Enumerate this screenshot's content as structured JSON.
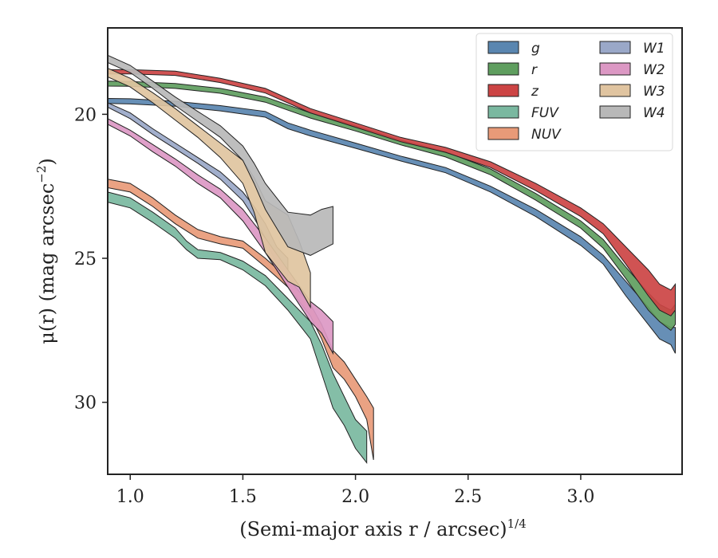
{
  "chart_data": {
    "type": "area",
    "xlabel": "(Semi-major axis r / arcsec)",
    "xlabel_exponent": "1/4",
    "ylabel": "μ(r) (mag arcsec",
    "ylabel_exponent": "−2",
    "ylabel_suffix": ")",
    "xlim": [
      0.9,
      3.45
    ],
    "ylim": [
      32.5,
      17.0
    ],
    "y_inverted": true,
    "x_ticks": [
      1.0,
      1.5,
      2.0,
      2.5,
      3.0
    ],
    "x_tick_labels": [
      "1.0",
      "1.5",
      "2.0",
      "2.5",
      "3.0"
    ],
    "y_ticks": [
      20,
      25,
      30
    ],
    "y_tick_labels": [
      "20",
      "25",
      "30"
    ],
    "legend_position": "top-right",
    "legend_columns": 2,
    "series": [
      {
        "name": "g",
        "color": "#5a86b0",
        "points": [
          [
            0.9,
            19.45,
            19.62
          ],
          [
            1.0,
            19.46,
            19.64
          ],
          [
            1.2,
            19.55,
            19.72
          ],
          [
            1.4,
            19.7,
            19.88
          ],
          [
            1.6,
            19.9,
            20.1
          ],
          [
            1.7,
            20.3,
            20.5
          ],
          [
            1.8,
            20.55,
            20.75
          ],
          [
            2.0,
            21.0,
            21.18
          ],
          [
            2.2,
            21.45,
            21.62
          ],
          [
            2.4,
            21.85,
            22.03
          ],
          [
            2.6,
            22.5,
            22.7
          ],
          [
            2.8,
            23.3,
            23.55
          ],
          [
            3.0,
            24.25,
            24.55
          ],
          [
            3.1,
            24.9,
            25.2
          ],
          [
            3.2,
            25.8,
            26.3
          ],
          [
            3.3,
            26.7,
            27.3
          ],
          [
            3.35,
            27.2,
            27.8
          ],
          [
            3.4,
            27.4,
            28.0
          ],
          [
            3.42,
            27.4,
            28.3
          ]
        ]
      },
      {
        "name": "r",
        "color": "#5f9e5f",
        "points": [
          [
            0.9,
            18.85,
            19.02
          ],
          [
            1.0,
            18.86,
            19.03
          ],
          [
            1.2,
            18.93,
            19.1
          ],
          [
            1.4,
            19.1,
            19.27
          ],
          [
            1.6,
            19.4,
            19.58
          ],
          [
            1.8,
            19.95,
            20.13
          ],
          [
            2.0,
            20.4,
            20.58
          ],
          [
            2.2,
            20.9,
            21.06
          ],
          [
            2.4,
            21.3,
            21.48
          ],
          [
            2.6,
            21.9,
            22.1
          ],
          [
            2.8,
            22.75,
            22.98
          ],
          [
            3.0,
            23.7,
            23.95
          ],
          [
            3.1,
            24.35,
            24.65
          ],
          [
            3.2,
            25.3,
            25.7
          ],
          [
            3.3,
            26.2,
            26.8
          ],
          [
            3.35,
            26.6,
            27.2
          ],
          [
            3.4,
            26.8,
            27.5
          ],
          [
            3.42,
            26.6,
            27.3
          ]
        ]
      },
      {
        "name": "z",
        "color": "#cc4444",
        "points": [
          [
            0.9,
            18.45,
            18.6
          ],
          [
            1.0,
            18.45,
            18.6
          ],
          [
            1.2,
            18.5,
            18.65
          ],
          [
            1.4,
            18.75,
            18.9
          ],
          [
            1.6,
            19.1,
            19.26
          ],
          [
            1.8,
            19.8,
            19.95
          ],
          [
            2.0,
            20.3,
            20.45
          ],
          [
            2.2,
            20.8,
            20.95
          ],
          [
            2.4,
            21.15,
            21.32
          ],
          [
            2.6,
            21.65,
            21.85
          ],
          [
            2.8,
            22.4,
            22.65
          ],
          [
            3.0,
            23.25,
            23.55
          ],
          [
            3.1,
            23.8,
            24.15
          ],
          [
            3.2,
            24.6,
            25.2
          ],
          [
            3.3,
            25.4,
            26.3
          ],
          [
            3.35,
            25.9,
            26.8
          ],
          [
            3.4,
            26.1,
            27.0
          ],
          [
            3.42,
            25.9,
            26.8
          ]
        ]
      },
      {
        "name": "FUV",
        "color": "#7ab8a0",
        "points": [
          [
            0.9,
            22.7,
            23.05
          ],
          [
            1.0,
            22.9,
            23.25
          ],
          [
            1.1,
            23.4,
            23.75
          ],
          [
            1.2,
            23.95,
            24.3
          ],
          [
            1.25,
            24.4,
            24.7
          ],
          [
            1.3,
            24.7,
            25.0
          ],
          [
            1.4,
            24.8,
            25.05
          ],
          [
            1.5,
            25.1,
            25.4
          ],
          [
            1.6,
            25.6,
            25.95
          ],
          [
            1.7,
            26.4,
            26.8
          ],
          [
            1.8,
            27.2,
            27.8
          ],
          [
            1.85,
            28.0,
            29.0
          ],
          [
            1.9,
            29.0,
            30.2
          ],
          [
            1.95,
            29.8,
            30.8
          ],
          [
            2.0,
            30.6,
            31.6
          ],
          [
            2.05,
            31.0,
            32.1
          ]
        ]
      },
      {
        "name": "NUV",
        "color": "#e89a78",
        "points": [
          [
            0.9,
            22.25,
            22.55
          ],
          [
            1.0,
            22.4,
            22.7
          ],
          [
            1.1,
            22.9,
            23.2
          ],
          [
            1.2,
            23.5,
            23.8
          ],
          [
            1.3,
            24.0,
            24.3
          ],
          [
            1.4,
            24.25,
            24.5
          ],
          [
            1.5,
            24.4,
            24.65
          ],
          [
            1.6,
            25.0,
            25.3
          ],
          [
            1.7,
            25.7,
            26.0
          ],
          [
            1.8,
            26.6,
            27.0
          ],
          [
            1.85,
            27.3,
            27.8
          ],
          [
            1.9,
            28.2,
            28.8
          ],
          [
            1.95,
            28.6,
            29.2
          ],
          [
            2.0,
            29.2,
            29.8
          ],
          [
            2.05,
            29.8,
            30.6
          ],
          [
            2.08,
            30.2,
            32.0
          ]
        ]
      },
      {
        "name": "W1",
        "color": "#9aa8c8",
        "points": [
          [
            0.9,
            19.6,
            19.75
          ],
          [
            1.0,
            19.95,
            20.15
          ],
          [
            1.1,
            20.5,
            20.7
          ],
          [
            1.2,
            21.0,
            21.2
          ],
          [
            1.3,
            21.5,
            21.7
          ],
          [
            1.4,
            22.0,
            22.25
          ],
          [
            1.5,
            22.7,
            23.0
          ],
          [
            1.55,
            23.2,
            23.6
          ],
          [
            1.6,
            23.8,
            24.3
          ],
          [
            1.65,
            24.6,
            25.2
          ],
          [
            1.7,
            25.0,
            25.6
          ]
        ]
      },
      {
        "name": "W2",
        "color": "#dc98c4",
        "points": [
          [
            0.9,
            20.15,
            20.35
          ],
          [
            1.0,
            20.55,
            20.75
          ],
          [
            1.1,
            21.05,
            21.3
          ],
          [
            1.2,
            21.55,
            21.8
          ],
          [
            1.3,
            22.1,
            22.4
          ],
          [
            1.4,
            22.6,
            22.9
          ],
          [
            1.5,
            23.3,
            23.7
          ],
          [
            1.6,
            24.3,
            24.8
          ],
          [
            1.7,
            25.4,
            26.0
          ],
          [
            1.8,
            26.5,
            27.2
          ],
          [
            1.85,
            26.8,
            27.6
          ],
          [
            1.9,
            27.2,
            28.3
          ]
        ]
      },
      {
        "name": "W3",
        "color": "#e0c4a0",
        "points": [
          [
            0.9,
            18.4,
            18.7
          ],
          [
            1.0,
            18.75,
            19.05
          ],
          [
            1.1,
            19.25,
            19.6
          ],
          [
            1.2,
            19.8,
            20.2
          ],
          [
            1.3,
            20.4,
            20.8
          ],
          [
            1.4,
            21.0,
            21.5
          ],
          [
            1.5,
            21.6,
            22.4
          ],
          [
            1.55,
            22.2,
            23.4
          ],
          [
            1.6,
            23.0,
            24.8
          ],
          [
            1.7,
            23.5,
            25.8
          ],
          [
            1.75,
            24.4,
            26.0
          ],
          [
            1.8,
            25.5,
            26.7
          ]
        ]
      },
      {
        "name": "W4",
        "color": "#b8b8b8",
        "points": [
          [
            0.9,
            17.95,
            18.2
          ],
          [
            1.0,
            18.3,
            18.55
          ],
          [
            1.1,
            18.85,
            19.1
          ],
          [
            1.2,
            19.4,
            19.7
          ],
          [
            1.3,
            19.9,
            20.25
          ],
          [
            1.4,
            20.4,
            20.8
          ],
          [
            1.5,
            21.1,
            21.6
          ],
          [
            1.55,
            21.7,
            22.4
          ],
          [
            1.6,
            22.4,
            23.3
          ],
          [
            1.7,
            23.4,
            24.6
          ],
          [
            1.8,
            23.5,
            24.9
          ],
          [
            1.85,
            23.3,
            24.7
          ],
          [
            1.9,
            23.2,
            24.5
          ]
        ]
      }
    ]
  }
}
